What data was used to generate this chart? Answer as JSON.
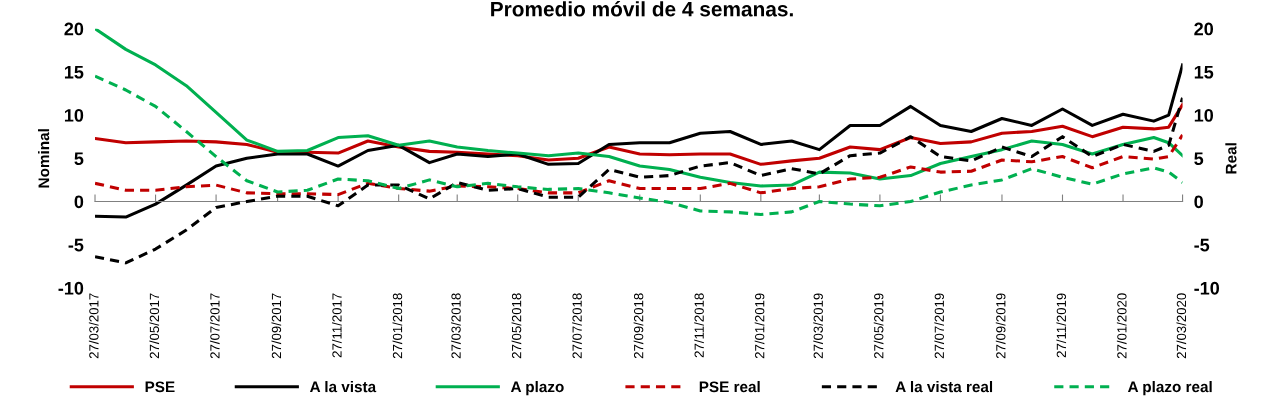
{
  "chart_data": {
    "type": "line",
    "title": "Promedio móvil de 4 semanas.",
    "ylabel": "Nominal",
    "y2label": "Real",
    "x": [
      "2017-03-27",
      "2017-04-27",
      "2017-05-27",
      "2017-06-27",
      "2017-07-27",
      "2017-08-27",
      "2017-09-27",
      "2017-10-27",
      "2017-11-27",
      "2017-12-27",
      "2018-01-27",
      "2018-02-27",
      "2018-03-27",
      "2018-04-27",
      "2018-05-27",
      "2018-06-27",
      "2018-07-27",
      "2018-08-27",
      "2018-09-27",
      "2018-10-27",
      "2018-11-27",
      "2018-12-27",
      "2019-01-27",
      "2019-02-27",
      "2019-03-27",
      "2019-04-27",
      "2019-05-27",
      "2019-06-27",
      "2019-07-27",
      "2019-08-27",
      "2019-09-27",
      "2019-10-27",
      "2019-11-27",
      "2019-12-27",
      "2020-01-27",
      "2020-02-27",
      "2020-03-13",
      "2020-03-27"
    ],
    "series": [
      {
        "name": "PSE",
        "color": "#c00000",
        "line_style": "solid",
        "values": [
          7.3,
          6.8,
          6.9,
          7.0,
          6.9,
          6.6,
          5.7,
          5.7,
          5.6,
          7.0,
          6.3,
          5.8,
          5.7,
          5.5,
          5.3,
          4.8,
          5.0,
          6.3,
          5.5,
          5.4,
          5.5,
          5.5,
          4.3,
          4.7,
          5.0,
          6.3,
          6.0,
          7.4,
          6.7,
          6.9,
          7.9,
          8.1,
          8.7,
          7.5,
          8.6,
          8.4,
          8.6,
          11.2
        ]
      },
      {
        "name": "A la vista",
        "color": "#000000",
        "line_style": "solid",
        "values": [
          -1.7,
          -1.8,
          -0.3,
          1.9,
          4.1,
          5.0,
          5.5,
          5.5,
          4.1,
          5.9,
          6.5,
          4.5,
          5.5,
          5.2,
          5.5,
          4.3,
          4.4,
          6.6,
          6.8,
          6.8,
          7.9,
          8.1,
          6.6,
          7.0,
          6.0,
          8.8,
          8.8,
          11.0,
          8.8,
          8.1,
          9.6,
          8.8,
          10.7,
          8.8,
          10.1,
          9.3,
          10.0,
          15.8
        ]
      },
      {
        "name": "A plazo",
        "color": "#00b050",
        "line_style": "solid",
        "values": [
          20.0,
          17.6,
          15.8,
          13.4,
          10.3,
          7.1,
          5.8,
          5.9,
          7.4,
          7.6,
          6.5,
          7.0,
          6.3,
          5.9,
          5.6,
          5.3,
          5.6,
          5.2,
          4.1,
          3.7,
          2.8,
          2.2,
          1.8,
          1.9,
          3.4,
          3.3,
          2.6,
          3.0,
          4.4,
          5.2,
          6.0,
          7.0,
          6.6,
          5.5,
          6.6,
          7.4,
          6.8,
          5.3
        ]
      },
      {
        "name": "PSE real",
        "color": "#c00000",
        "line_style": "dashed",
        "axis": "y2",
        "values": [
          2.1,
          1.3,
          1.3,
          1.7,
          1.9,
          1.0,
          0.9,
          0.9,
          0.8,
          2.1,
          1.5,
          1.2,
          1.8,
          1.7,
          1.5,
          1.0,
          1.0,
          2.4,
          1.5,
          1.5,
          1.5,
          2.1,
          1.0,
          1.5,
          1.7,
          2.6,
          2.8,
          4.0,
          3.4,
          3.5,
          4.8,
          4.6,
          5.2,
          3.9,
          5.2,
          4.9,
          5.2,
          7.7
        ]
      },
      {
        "name": "A la vista real",
        "color": "#000000",
        "line_style": "dashed",
        "axis": "y2",
        "values": [
          -6.4,
          -7.1,
          -5.5,
          -3.3,
          -0.7,
          0.0,
          0.6,
          0.6,
          -0.5,
          1.9,
          1.9,
          0.3,
          2.2,
          1.3,
          1.5,
          0.5,
          0.5,
          3.7,
          2.8,
          3.0,
          4.1,
          4.5,
          3.0,
          3.8,
          3.2,
          5.3,
          5.6,
          7.5,
          5.2,
          4.7,
          6.3,
          5.2,
          7.5,
          5.2,
          6.6,
          5.8,
          6.5,
          12.0
        ]
      },
      {
        "name": "A plazo real",
        "color": "#00b050",
        "line_style": "dashed",
        "axis": "y2",
        "values": [
          14.5,
          12.9,
          11.0,
          8.1,
          5.2,
          2.4,
          1.1,
          1.3,
          2.6,
          2.4,
          1.5,
          2.5,
          1.7,
          2.1,
          1.7,
          1.4,
          1.5,
          1.0,
          0.4,
          -0.1,
          -1.1,
          -1.2,
          -1.5,
          -1.2,
          0.0,
          -0.3,
          -0.5,
          0.0,
          1.1,
          1.9,
          2.5,
          3.8,
          2.8,
          2.0,
          3.2,
          3.9,
          3.4,
          2.2
        ]
      }
    ],
    "xlim": [
      "2017-03-27",
      "2020-03-27"
    ],
    "xticks": [
      {
        "value": "2017-03-27",
        "label": "27/03/2017"
      },
      {
        "value": "2017-05-27",
        "label": "27/05/2017"
      },
      {
        "value": "2017-07-27",
        "label": "27/07/2017"
      },
      {
        "value": "2017-09-27",
        "label": "27/09/2017"
      },
      {
        "value": "2017-11-27",
        "label": "27/11/2017"
      },
      {
        "value": "2018-01-27",
        "label": "27/01/2018"
      },
      {
        "value": "2018-03-27",
        "label": "27/03/2018"
      },
      {
        "value": "2018-05-27",
        "label": "27/05/2018"
      },
      {
        "value": "2018-07-27",
        "label": "27/07/2018"
      },
      {
        "value": "2018-09-27",
        "label": "27/09/2018"
      },
      {
        "value": "2018-11-27",
        "label": "27/11/2018"
      },
      {
        "value": "2019-01-27",
        "label": "27/01/2019"
      },
      {
        "value": "2019-03-27",
        "label": "27/03/2019"
      },
      {
        "value": "2019-05-27",
        "label": "27/05/2019"
      },
      {
        "value": "2019-07-27",
        "label": "27/07/2019"
      },
      {
        "value": "2019-09-27",
        "label": "27/09/2019"
      },
      {
        "value": "2019-11-27",
        "label": "27/11/2019"
      },
      {
        "value": "2020-01-27",
        "label": "27/01/2020"
      },
      {
        "value": "2020-03-27",
        "label": "27/03/2020"
      }
    ],
    "ylim": [
      -10,
      20
    ],
    "yticks": [
      -10,
      -5,
      0,
      5,
      10,
      15,
      20
    ],
    "y2lim": [
      -10,
      20
    ],
    "y2ticks": [
      -10,
      -5,
      0,
      5,
      10,
      15,
      20
    ],
    "legend": "bottom",
    "marker": "none"
  }
}
